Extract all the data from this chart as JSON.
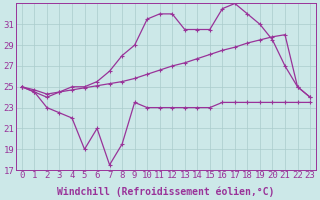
{
  "x": [
    0,
    1,
    2,
    3,
    4,
    5,
    6,
    7,
    8,
    9,
    10,
    11,
    12,
    13,
    14,
    15,
    16,
    17,
    18,
    19,
    20,
    21,
    22,
    23
  ],
  "line_bottom": [
    25,
    24.5,
    23,
    22.5,
    22,
    19,
    21,
    17.5,
    19.5,
    23.5,
    23,
    23,
    23,
    23,
    23,
    23,
    23.5,
    23.5,
    23.5,
    23.5,
    23.5,
    23.5,
    23.5,
    23.5
  ],
  "line_mid": [
    25,
    24.7,
    24.3,
    24.5,
    24.7,
    24.9,
    25.1,
    25.3,
    25.5,
    25.8,
    26.2,
    26.6,
    27.0,
    27.3,
    27.7,
    28.1,
    28.5,
    28.8,
    29.2,
    29.5,
    29.8,
    30.0,
    25,
    24
  ],
  "line_top": [
    25,
    24.5,
    24,
    24.5,
    25,
    25,
    25.5,
    26.5,
    28,
    29,
    31.5,
    32,
    32,
    30.5,
    30.5,
    30.5,
    32.5,
    33,
    32,
    31,
    29.5,
    27,
    25,
    24
  ],
  "bg_color": "#cce8e8",
  "line_color": "#993399",
  "grid_color": "#aacccc",
  "xlabel": "Windchill (Refroidissement éolien,°C)",
  "ylim": [
    17,
    33
  ],
  "xlim": [
    -0.5,
    23.5
  ],
  "yticks": [
    17,
    19,
    21,
    23,
    25,
    27,
    29,
    31
  ],
  "xticks": [
    0,
    1,
    2,
    3,
    4,
    5,
    6,
    7,
    8,
    9,
    10,
    11,
    12,
    13,
    14,
    15,
    16,
    17,
    18,
    19,
    20,
    21,
    22,
    23
  ],
  "fontsize_xlabel": 7.0,
  "fontsize_ticks": 6.5
}
